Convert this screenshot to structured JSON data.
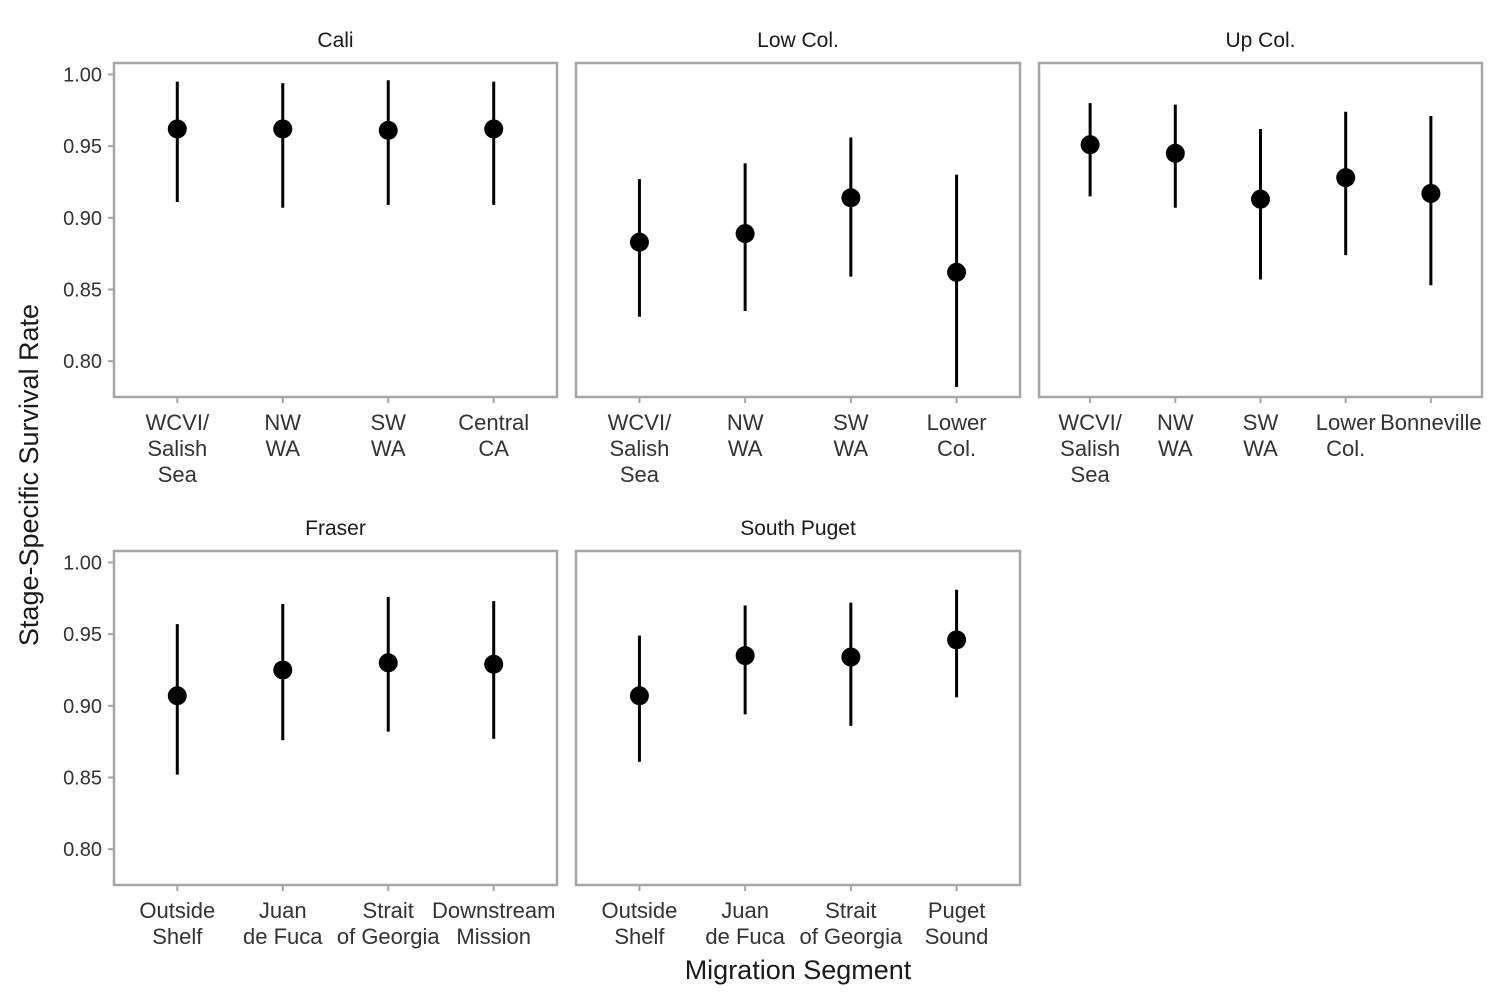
{
  "chart_data": {
    "type": "scatter",
    "xlabel": "Migration Segment",
    "ylabel": "Stage-Specific Survival Rate",
    "ylim": [
      0.775,
      1.008
    ],
    "yticks": [
      "0.80",
      "0.85",
      "0.90",
      "0.95",
      "1.00"
    ],
    "marker_color": "#000000",
    "panel_border_color": "#a6a6a6",
    "grid": false,
    "panels": [
      {
        "title": "Cali",
        "categories": [
          [
            "WCVI/",
            "Salish",
            "Sea"
          ],
          [
            "NW",
            "WA"
          ],
          [
            "SW",
            "WA"
          ],
          [
            "Central",
            "CA"
          ]
        ],
        "estimate": [
          0.962,
          0.962,
          0.961,
          0.962
        ],
        "lower": [
          0.911,
          0.907,
          0.909,
          0.909
        ],
        "upper": [
          0.995,
          0.994,
          0.996,
          0.995
        ]
      },
      {
        "title": "Low Col.",
        "categories": [
          [
            "WCVI/",
            "Salish",
            "Sea"
          ],
          [
            "NW",
            "WA"
          ],
          [
            "SW",
            "WA"
          ],
          [
            "Lower",
            "Col."
          ]
        ],
        "estimate": [
          0.883,
          0.889,
          0.914,
          0.862
        ],
        "lower": [
          0.831,
          0.835,
          0.859,
          0.782
        ],
        "upper": [
          0.927,
          0.938,
          0.956,
          0.93
        ]
      },
      {
        "title": "Up Col.",
        "categories": [
          [
            "WCVI/",
            "Salish",
            "Sea"
          ],
          [
            "NW",
            "WA"
          ],
          [
            "SW",
            "WA"
          ],
          [
            "Lower",
            "Col."
          ],
          [
            "Bonneville"
          ]
        ],
        "estimate": [
          0.951,
          0.945,
          0.913,
          0.928,
          0.917
        ],
        "lower": [
          0.915,
          0.907,
          0.857,
          0.874,
          0.853
        ],
        "upper": [
          0.98,
          0.979,
          0.962,
          0.974,
          0.971
        ]
      },
      {
        "title": "Fraser",
        "categories": [
          [
            "Outside",
            "Shelf"
          ],
          [
            "Juan",
            "de Fuca"
          ],
          [
            "Strait",
            "of Georgia"
          ],
          [
            "Downstream",
            "Mission"
          ]
        ],
        "estimate": [
          0.907,
          0.925,
          0.93,
          0.929
        ],
        "lower": [
          0.852,
          0.876,
          0.882,
          0.877
        ],
        "upper": [
          0.957,
          0.971,
          0.976,
          0.973
        ]
      },
      {
        "title": "South Puget",
        "categories": [
          [
            "Outside",
            "Shelf"
          ],
          [
            "Juan",
            "de Fuca"
          ],
          [
            "Strait",
            "of Georgia"
          ],
          [
            "Puget",
            "Sound"
          ]
        ],
        "estimate": [
          0.907,
          0.935,
          0.934,
          0.946
        ],
        "lower": [
          0.861,
          0.894,
          0.886,
          0.906
        ],
        "upper": [
          0.949,
          0.97,
          0.972,
          0.981
        ]
      }
    ]
  }
}
